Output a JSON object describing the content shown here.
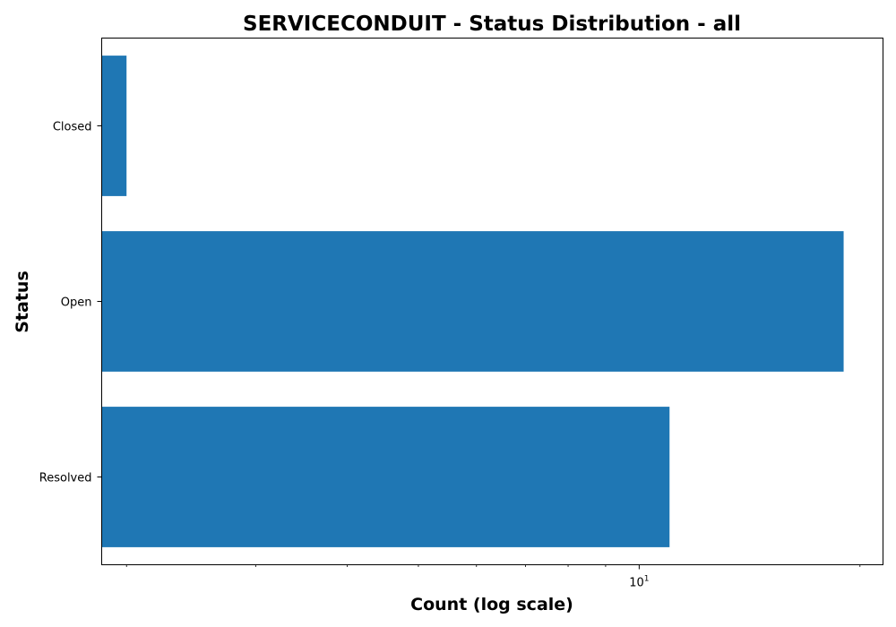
{
  "chart_data": {
    "type": "bar",
    "orientation": "horizontal",
    "title": "SERVICECONDUIT - Status Distribution - all",
    "xlabel": "Count (log scale)",
    "ylabel": "Status",
    "x_scale": "log",
    "xlim": [
      1.85,
      21.5
    ],
    "categories": [
      "Closed",
      "Open",
      "Resolved"
    ],
    "values": [
      2,
      19,
      11
    ],
    "x_ticks": [
      {
        "value": 10,
        "base": "10",
        "exp": "1"
      }
    ],
    "x_minor_ticks": [
      2,
      3,
      4,
      5,
      6,
      7,
      8,
      9,
      20
    ],
    "bar_color": "#1f77b4",
    "grid": false,
    "legend": "none"
  }
}
